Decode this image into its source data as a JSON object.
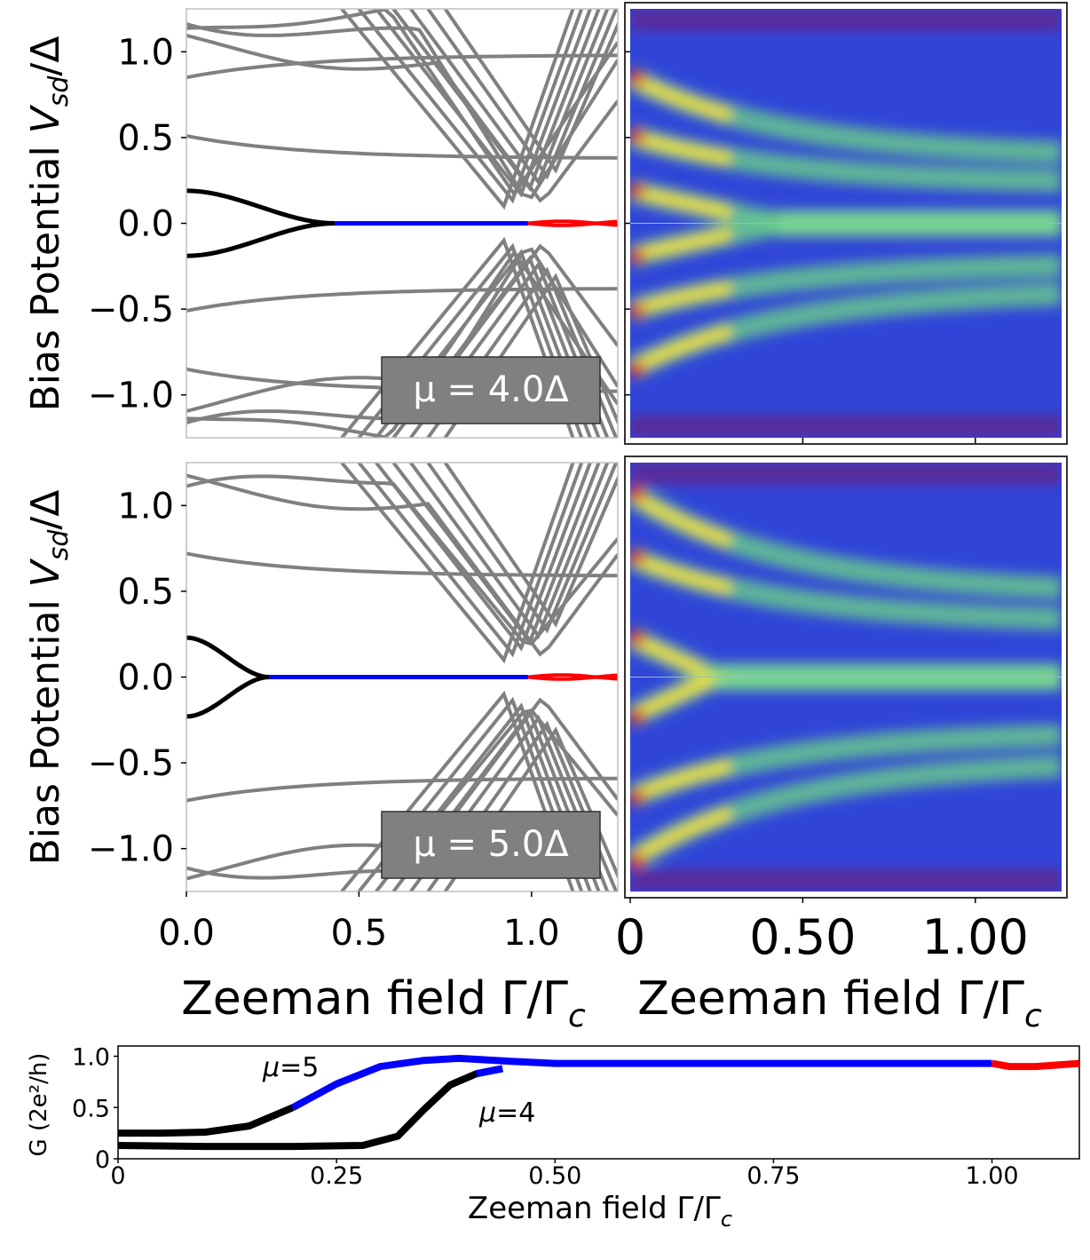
{
  "chart_data": [
    {
      "type": "line",
      "panel": "spectrum-top",
      "ylabel_prefix": "Bias Potential ",
      "ylabel_var": "V",
      "ylabel_sub": "sd",
      "ylabel_suffix": "/Δ",
      "xlabel": "",
      "xlim": [
        0,
        1.25
      ],
      "ylim": [
        -1.25,
        1.25
      ],
      "xticks": [
        0,
        0.5,
        1.0
      ],
      "yticks": [
        -1.0,
        -0.5,
        0.0,
        0.5,
        1.0
      ],
      "ytick_labels": [
        "−1.0",
        "−0.5",
        "0.0",
        "0.5",
        "1.0"
      ],
      "annotation": "μ = 4.0Δ",
      "series_colors": {
        "bulk": "#808080",
        "trivial": "#000000",
        "majorana": "#0000ff",
        "oscillating": "#ff0000"
      },
      "zero_mode_split": {
        "start": 0.19,
        "merge_at": 0.43
      },
      "blue_range": [
        0.43,
        0.99
      ],
      "red_range": [
        0.99,
        1.25
      ],
      "bulk_levels_at_zero": [
        0.51,
        0.85,
        1.05,
        1.13,
        1.2
      ]
    },
    {
      "type": "heatmap",
      "panel": "conductance-map-top",
      "xlim": [
        0,
        1.25
      ],
      "ylim": [
        -1.25,
        1.25
      ],
      "colormap": "jet-like (purple-blue-green-yellow-red)",
      "peak_levels_at_zero": [
        0.19,
        0.51,
        0.85
      ],
      "converge_at": 0.43
    },
    {
      "type": "line",
      "panel": "spectrum-bottom",
      "ylabel_prefix": "Bias Potential ",
      "ylabel_var": "V",
      "ylabel_sub": "sd",
      "ylabel_suffix": "/Δ",
      "xlabel": "Zeeman field Γ/Γ",
      "xlabel_sub": "c",
      "xlim": [
        0,
        1.25
      ],
      "ylim": [
        -1.25,
        1.25
      ],
      "xticks": [
        0,
        0.5,
        1.0
      ],
      "xtick_labels": [
        "0.0",
        "0.5",
        "1.0"
      ],
      "yticks": [
        -1.0,
        -0.5,
        0.0,
        0.5,
        1.0
      ],
      "ytick_labels": [
        "−1.0",
        "−0.5",
        "0.0",
        "0.5",
        "1.0"
      ],
      "annotation": "μ = 5.0Δ",
      "zero_mode_split": {
        "start": 0.23,
        "merge_at": 0.24
      },
      "blue_range": [
        0.24,
        0.99
      ],
      "red_range": [
        0.99,
        1.25
      ],
      "bulk_levels_at_zero": [
        0.72,
        1.07,
        1.13
      ]
    },
    {
      "type": "heatmap",
      "panel": "conductance-map-bottom",
      "xlabel": "Zeeman field Γ/Γ",
      "xlabel_sub": "c",
      "xlim": [
        0,
        1.25
      ],
      "ylim": [
        -1.25,
        1.25
      ],
      "xticks": [
        0,
        0.5,
        1.0
      ],
      "xtick_labels": [
        "0",
        "0.50",
        "1.00"
      ],
      "peak_levels_at_zero": [
        0.23,
        0.7,
        1.07
      ]
    },
    {
      "type": "line",
      "panel": "zero-bias-conductance",
      "ylabel": "G (2e²/h",
      "ylabel_paren_close": ")",
      "xlabel": "Zeeman field Γ/Γ",
      "xlabel_sub": "c",
      "xlim": [
        0,
        1.1
      ],
      "ylim": [
        0,
        1.1
      ],
      "xticks": [
        0,
        0.25,
        0.5,
        0.75,
        1.0
      ],
      "xtick_labels": [
        "0",
        "0.25",
        "0.50",
        "0.75",
        "1.00"
      ],
      "yticks": [
        0,
        0.5,
        1.0
      ],
      "ytick_labels": [
        "0",
        "0.5",
        "1.0"
      ],
      "series": [
        {
          "name": "μ=5",
          "label_var": "μ",
          "label_val": "=5",
          "x": [
            0,
            0.05,
            0.1,
            0.15,
            0.2,
            0.25,
            0.3,
            0.35,
            0.39,
            0.45,
            0.5,
            0.6,
            0.7,
            0.8,
            0.9,
            1.0,
            1.02,
            1.05,
            1.1
          ],
          "values": [
            0.25,
            0.25,
            0.26,
            0.32,
            0.5,
            0.73,
            0.9,
            0.96,
            0.98,
            0.95,
            0.93,
            0.93,
            0.93,
            0.93,
            0.93,
            0.93,
            0.9,
            0.9,
            0.93
          ]
        },
        {
          "name": "μ=4",
          "label_var": "μ",
          "label_val": "=4",
          "x": [
            0,
            0.1,
            0.2,
            0.28,
            0.32,
            0.35,
            0.38,
            0.41,
            0.44
          ],
          "values": [
            0.13,
            0.12,
            0.12,
            0.13,
            0.22,
            0.48,
            0.72,
            0.83,
            0.88
          ]
        }
      ],
      "segment_colors": {
        "trivial": "#000000",
        "majorana": "#0000ff",
        "oscillating": "#ff0000"
      }
    }
  ]
}
